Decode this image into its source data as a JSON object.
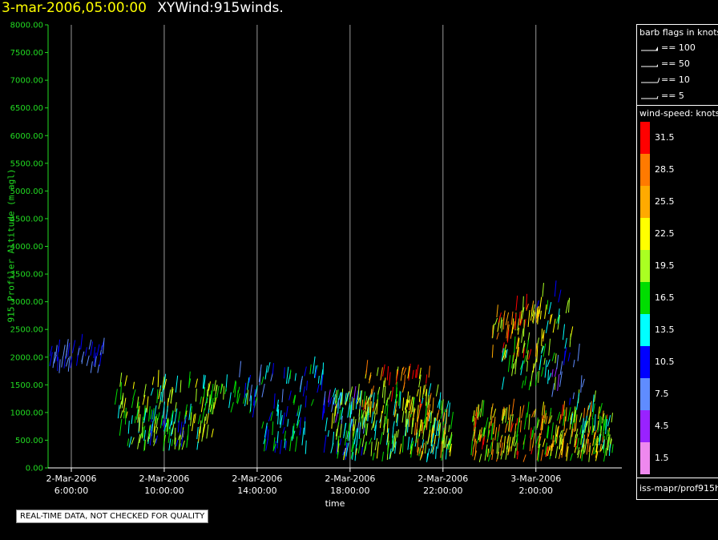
{
  "header": {
    "datetime": "3-mar-2006,05:00:00",
    "title": "XYWind:915winds."
  },
  "chart_data": {
    "type": "scatter",
    "description_type": "wind-barb time-height plot",
    "xlabel": "time",
    "ylabel": "915 Profiler Altitude (m agl)",
    "ylim": [
      0,
      8000
    ],
    "yticks": [
      "0.00",
      "500.00",
      "1000.00",
      "1500.00",
      "2000.00",
      "2500.00",
      "3000.00",
      "3500.00",
      "4000.00",
      "4500.00",
      "5000.00",
      "5500.00",
      "6000.00",
      "6500.00",
      "7000.00",
      "7500.00",
      "8000.00"
    ],
    "xticks": [
      {
        "date": "2-Mar-2006",
        "time": "6:00:00",
        "hour": 6
      },
      {
        "date": "2-Mar-2006",
        "time": "10:00:00",
        "hour": 10
      },
      {
        "date": "2-Mar-2006",
        "time": "14:00:00",
        "hour": 14
      },
      {
        "date": "2-Mar-2006",
        "time": "18:00:00",
        "hour": 18
      },
      {
        "date": "2-Mar-2006",
        "time": "22:00:00",
        "hour": 22
      },
      {
        "date": "3-Mar-2006",
        "time": "2:00:00",
        "hour": 26
      }
    ],
    "xlim_hours": [
      5.0,
      29.7
    ],
    "grid": "vertical",
    "segments": [
      {
        "t0": 5.0,
        "t1": 7.4,
        "z0": 1700,
        "z1": 2150,
        "smin": 6,
        "smax": 12,
        "dens": 3
      },
      {
        "t0": 7.8,
        "t1": 12.2,
        "z0": 300,
        "z1": 1500,
        "smin": 13,
        "smax": 24,
        "dens": 5
      },
      {
        "t0": 9.0,
        "t1": 11.0,
        "z0": 300,
        "z1": 900,
        "smin": 10,
        "smax": 20,
        "dens": 4
      },
      {
        "t0": 11.5,
        "t1": 14.0,
        "z0": 950,
        "z1": 1450,
        "smin": 13,
        "smax": 20,
        "dens": 2
      },
      {
        "t0": 13.2,
        "t1": 16.8,
        "z0": 900,
        "z1": 1750,
        "smin": 7,
        "smax": 16,
        "dens": 3
      },
      {
        "t0": 14.2,
        "t1": 16.0,
        "z0": 250,
        "z1": 850,
        "smin": 10,
        "smax": 17,
        "dens": 3
      },
      {
        "t0": 16.8,
        "t1": 18.6,
        "z0": 100,
        "z1": 1200,
        "smin": 5,
        "smax": 14,
        "dens": 5
      },
      {
        "t0": 17.2,
        "t1": 22.3,
        "z0": 100,
        "z1": 1300,
        "smin": 12,
        "smax": 22,
        "dens": 7
      },
      {
        "t0": 18.5,
        "t1": 21.6,
        "z0": 900,
        "z1": 1750,
        "smin": 18,
        "smax": 32,
        "dens": 4
      },
      {
        "t0": 20.5,
        "t1": 22.3,
        "z0": 100,
        "z1": 1000,
        "smin": 20,
        "smax": 30,
        "dens": 4
      },
      {
        "t0": 24.1,
        "t1": 26.3,
        "z0": 1900,
        "z1": 2900,
        "smin": 18,
        "smax": 32,
        "dens": 5
      },
      {
        "t0": 24.5,
        "t1": 26.8,
        "z0": 1400,
        "z1": 2100,
        "smin": 13,
        "smax": 22,
        "dens": 3
      },
      {
        "t0": 26.0,
        "t1": 27.5,
        "z0": 2100,
        "z1": 3100,
        "smin": 10,
        "smax": 25,
        "dens": 3
      },
      {
        "t0": 26.6,
        "t1": 28.0,
        "z0": 1100,
        "z1": 2000,
        "smin": 5,
        "smax": 12,
        "dens": 2
      },
      {
        "t0": 23.2,
        "t1": 29.2,
        "z0": 100,
        "z1": 950,
        "smin": 15,
        "smax": 31,
        "dens": 8
      },
      {
        "t0": 27.5,
        "t1": 29.2,
        "z0": 200,
        "z1": 1200,
        "smin": 12,
        "smax": 20,
        "dens": 4
      }
    ]
  },
  "legend": {
    "barb_title": "barb flags in knots",
    "barbs": [
      {
        "label": "== 100",
        "kind": "flag"
      },
      {
        "label": "== 50",
        "kind": "half-flag"
      },
      {
        "label": "== 10",
        "kind": "barb"
      },
      {
        "label": "== 5",
        "kind": "half-barb"
      }
    ],
    "speed_title": "wind-speed: knots",
    "speed_scale": [
      {
        "label": "31.5",
        "color": "#ff0000"
      },
      {
        "label": "28.5",
        "color": "#ff7a00"
      },
      {
        "label": "25.5",
        "color": "#ffaa00"
      },
      {
        "label": "22.5",
        "color": "#ffff00"
      },
      {
        "label": "19.5",
        "color": "#aaff22"
      },
      {
        "label": "16.5",
        "color": "#00dd00"
      },
      {
        "label": "13.5",
        "color": "#00ffff"
      },
      {
        "label": "10.5",
        "color": "#0000ff"
      },
      {
        "label": "7.5",
        "color": "#5f8cff"
      },
      {
        "label": "4.5",
        "color": "#9922ff"
      },
      {
        "label": "1.5",
        "color": "#ee88ee"
      }
    ],
    "source": "iss-mapr/prof915h"
  },
  "disclaimer": "REAL-TIME DATA, NOT CHECKED FOR QUALITY"
}
